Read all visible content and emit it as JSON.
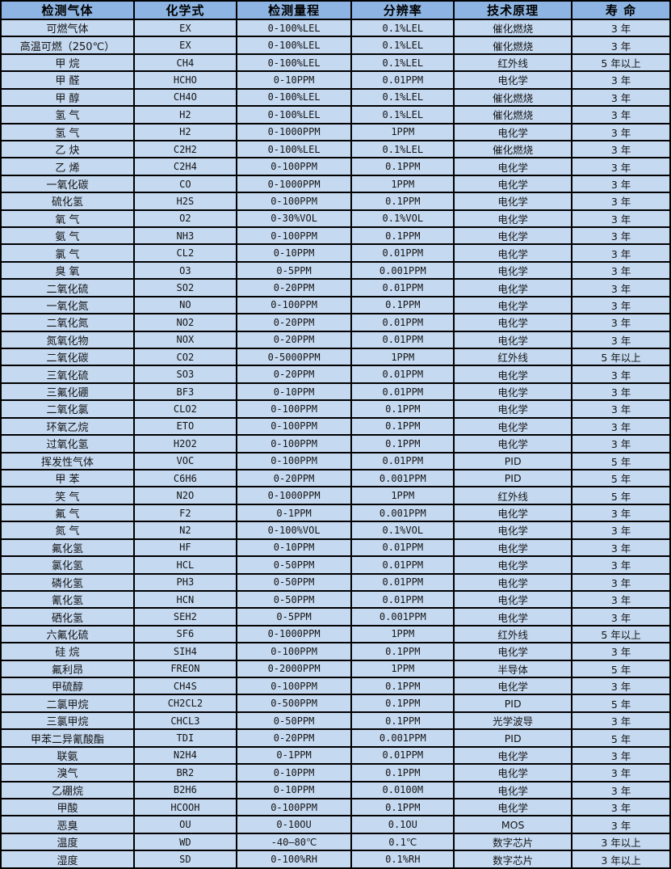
{
  "colors": {
    "header_bg": "#8db4e2",
    "row_bg": "#c5d9f1",
    "border": "#000000",
    "text": "#151515"
  },
  "table": {
    "columns": [
      {
        "key": "gas",
        "label": "检测气体"
      },
      {
        "key": "formula",
        "label": "化学式"
      },
      {
        "key": "range",
        "label": "检测量程"
      },
      {
        "key": "resolution",
        "label": "分辨率"
      },
      {
        "key": "principle",
        "label": "技术原理"
      },
      {
        "key": "lifespan",
        "label": "寿 命"
      }
    ],
    "rows": [
      {
        "gas": "可燃气体",
        "formula": "EX",
        "range": "0-100%LEL",
        "resolution": "0.1%LEL",
        "principle": "催化燃烧",
        "lifespan": "3 年"
      },
      {
        "gas": "高温可燃（250℃）",
        "formula": "EX",
        "range": "0-100%LEL",
        "resolution": "0.1%LEL",
        "principle": "催化燃烧",
        "lifespan": "3 年"
      },
      {
        "gas": "甲 烷",
        "formula": "CH4",
        "range": "0-100%LEL",
        "resolution": "0.1%LEL",
        "principle": "红外线",
        "lifespan": "5 年以上"
      },
      {
        "gas": "甲 醛",
        "formula": "HCHO",
        "range": "0-10PPM",
        "resolution": "0.01PPM",
        "principle": "电化学",
        "lifespan": "3 年"
      },
      {
        "gas": "甲 醇",
        "formula": "CH4O",
        "range": "0-100%LEL",
        "resolution": "0.1%LEL",
        "principle": "催化燃烧",
        "lifespan": "3 年"
      },
      {
        "gas": "氢 气",
        "formula": "H2",
        "range": "0-100%LEL",
        "resolution": "0.1%LEL",
        "principle": "催化燃烧",
        "lifespan": "3 年"
      },
      {
        "gas": "氢 气",
        "formula": "H2",
        "range": "0-1000PPM",
        "resolution": "1PPM",
        "principle": "电化学",
        "lifespan": "3 年"
      },
      {
        "gas": "乙 炔",
        "formula": "C2H2",
        "range": "0-100%LEL",
        "resolution": "0.1%LEL",
        "principle": "催化燃烧",
        "lifespan": "3 年"
      },
      {
        "gas": "乙 烯",
        "formula": "C2H4",
        "range": "0-100PPM",
        "resolution": "0.1PPM",
        "principle": "电化学",
        "lifespan": "3 年"
      },
      {
        "gas": "一氧化碳",
        "formula": "CO",
        "range": "0-1000PPM",
        "resolution": "1PPM",
        "principle": "电化学",
        "lifespan": "3 年"
      },
      {
        "gas": "硫化氢",
        "formula": "H2S",
        "range": "0-100PPM",
        "resolution": "0.1PPM",
        "principle": "电化学",
        "lifespan": "3 年"
      },
      {
        "gas": "氧 气",
        "formula": "O2",
        "range": "0-30%VOL",
        "resolution": "0.1%VOL",
        "principle": "电化学",
        "lifespan": "3 年"
      },
      {
        "gas": "氨 气",
        "formula": "NH3",
        "range": "0-100PPM",
        "resolution": "0.1PPM",
        "principle": "电化学",
        "lifespan": "3 年"
      },
      {
        "gas": "氯 气",
        "formula": "CL2",
        "range": "0-10PPM",
        "resolution": "0.01PPM",
        "principle": "电化学",
        "lifespan": "3 年"
      },
      {
        "gas": "臭 氧",
        "formula": "O3",
        "range": "0-5PPM",
        "resolution": "0.001PPM",
        "principle": "电化学",
        "lifespan": "3 年"
      },
      {
        "gas": "二氧化硫",
        "formula": "SO2",
        "range": "0-20PPM",
        "resolution": "0.01PPM",
        "principle": "电化学",
        "lifespan": "3 年"
      },
      {
        "gas": "一氧化氮",
        "formula": "NO",
        "range": "0-100PPM",
        "resolution": "0.1PPM",
        "principle": "电化学",
        "lifespan": "3 年"
      },
      {
        "gas": "二氧化氮",
        "formula": "NO2",
        "range": "0-20PPM",
        "resolution": "0.01PPM",
        "principle": "电化学",
        "lifespan": "3 年"
      },
      {
        "gas": "氮氧化物",
        "formula": "NOX",
        "range": "0-20PPM",
        "resolution": "0.01PPM",
        "principle": "电化学",
        "lifespan": "3 年"
      },
      {
        "gas": "二氧化碳",
        "formula": "CO2",
        "range": "0-5000PPM",
        "resolution": "1PPM",
        "principle": "红外线",
        "lifespan": "5 年以上"
      },
      {
        "gas": "三氧化硫",
        "formula": "SO3",
        "range": "0-20PPM",
        "resolution": "0.01PPM",
        "principle": "电化学",
        "lifespan": "3 年"
      },
      {
        "gas": "三氟化硼",
        "formula": "BF3",
        "range": "0-10PPM",
        "resolution": "0.01PPM",
        "principle": "电化学",
        "lifespan": "3 年"
      },
      {
        "gas": "二氧化氯",
        "formula": "CLO2",
        "range": "0-100PPM",
        "resolution": "0.1PPM",
        "principle": "电化学",
        "lifespan": "3 年"
      },
      {
        "gas": "环氧乙烷",
        "formula": "ETO",
        "range": "0-100PPM",
        "resolution": "0.1PPM",
        "principle": "电化学",
        "lifespan": "3 年"
      },
      {
        "gas": "过氧化氢",
        "formula": "H2O2",
        "range": "0-100PPM",
        "resolution": "0.1PPM",
        "principle": "电化学",
        "lifespan": "3 年"
      },
      {
        "gas": "挥发性气体",
        "formula": "VOC",
        "range": "0-100PPM",
        "resolution": "0.01PPM",
        "principle": "PID",
        "lifespan": "5 年"
      },
      {
        "gas": "甲 苯",
        "formula": "C6H6",
        "range": "0-20PPM",
        "resolution": "0.001PPM",
        "principle": "PID",
        "lifespan": "5 年"
      },
      {
        "gas": "笑 气",
        "formula": "N2O",
        "range": "0-1000PPM",
        "resolution": "1PPM",
        "principle": "红外线",
        "lifespan": "5 年"
      },
      {
        "gas": "氟 气",
        "formula": "F2",
        "range": "0-1PPM",
        "resolution": "0.001PPM",
        "principle": "电化学",
        "lifespan": "3 年"
      },
      {
        "gas": "氮 气",
        "formula": "N2",
        "range": "0-100%VOL",
        "resolution": "0.1%VOL",
        "principle": "电化学",
        "lifespan": "3 年"
      },
      {
        "gas": "氟化氢",
        "formula": "HF",
        "range": "0-10PPM",
        "resolution": "0.01PPM",
        "principle": "电化学",
        "lifespan": "3 年"
      },
      {
        "gas": "氯化氢",
        "formula": "HCL",
        "range": "0-50PPM",
        "resolution": "0.01PPM",
        "principle": "电化学",
        "lifespan": "3 年"
      },
      {
        "gas": "磷化氢",
        "formula": "PH3",
        "range": "0-50PPM",
        "resolution": "0.01PPM",
        "principle": "电化学",
        "lifespan": "3 年"
      },
      {
        "gas": "氰化氢",
        "formula": "HCN",
        "range": "0-50PPM",
        "resolution": "0.01PPM",
        "principle": "电化学",
        "lifespan": "3 年"
      },
      {
        "gas": "硒化氢",
        "formula": "SEH2",
        "range": "0-5PPM",
        "resolution": "0.001PPM",
        "principle": "电化学",
        "lifespan": "3 年"
      },
      {
        "gas": "六氟化硫",
        "formula": "SF6",
        "range": "0-1000PPM",
        "resolution": "1PPM",
        "principle": "红外线",
        "lifespan": "5 年以上"
      },
      {
        "gas": "硅 烷",
        "formula": "SIH4",
        "range": "0-100PPM",
        "resolution": "0.1PPM",
        "principle": "电化学",
        "lifespan": "3 年"
      },
      {
        "gas": "氟利昂",
        "formula": "FREON",
        "range": "0-2000PPM",
        "resolution": "1PPM",
        "principle": "半导体",
        "lifespan": "5 年"
      },
      {
        "gas": "甲硫醇",
        "formula": "CH4S",
        "range": "0-100PPM",
        "resolution": "0.1PPM",
        "principle": "电化学",
        "lifespan": "3 年"
      },
      {
        "gas": "二氯甲烷",
        "formula": "CH2CL2",
        "range": "0-500PPM",
        "resolution": "0.1PPM",
        "principle": "PID",
        "lifespan": "5 年"
      },
      {
        "gas": "三氯甲烷",
        "formula": "CHCL3",
        "range": "0-50PPM",
        "resolution": "0.1PPM",
        "principle": "光学波导",
        "lifespan": "3 年"
      },
      {
        "gas": "甲苯二异氰酸酯",
        "formula": "TDI",
        "range": "0-20PPM",
        "resolution": "0.001PPM",
        "principle": "PID",
        "lifespan": "5 年"
      },
      {
        "gas": "联氨",
        "formula": "N2H4",
        "range": "0-1PPM",
        "resolution": "0.01PPM",
        "principle": "电化学",
        "lifespan": "3 年"
      },
      {
        "gas": "溴气",
        "formula": "BR2",
        "range": "0-10PPM",
        "resolution": "0.1PPM",
        "principle": "电化学",
        "lifespan": "3 年"
      },
      {
        "gas": "乙硼烷",
        "formula": "B2H6",
        "range": "0-10PPM",
        "resolution": "0.0100M",
        "principle": "电化学",
        "lifespan": "3 年"
      },
      {
        "gas": "甲酸",
        "formula": "HCOOH",
        "range": "0-100PPM",
        "resolution": "0.1PPM",
        "principle": "电化学",
        "lifespan": "3 年"
      },
      {
        "gas": "恶臭",
        "formula": "OU",
        "range": "0-10OU",
        "resolution": "0.1OU",
        "principle": "MOS",
        "lifespan": "3 年"
      },
      {
        "gas": "温度",
        "formula": "WD",
        "range": "-40—80℃",
        "resolution": "0.1℃",
        "principle": "数字芯片",
        "lifespan": "3 年以上"
      },
      {
        "gas": "湿度",
        "formula": "SD",
        "range": "0-100%RH",
        "resolution": "0.1%RH",
        "principle": "数字芯片",
        "lifespan": "3 年以上"
      }
    ]
  }
}
